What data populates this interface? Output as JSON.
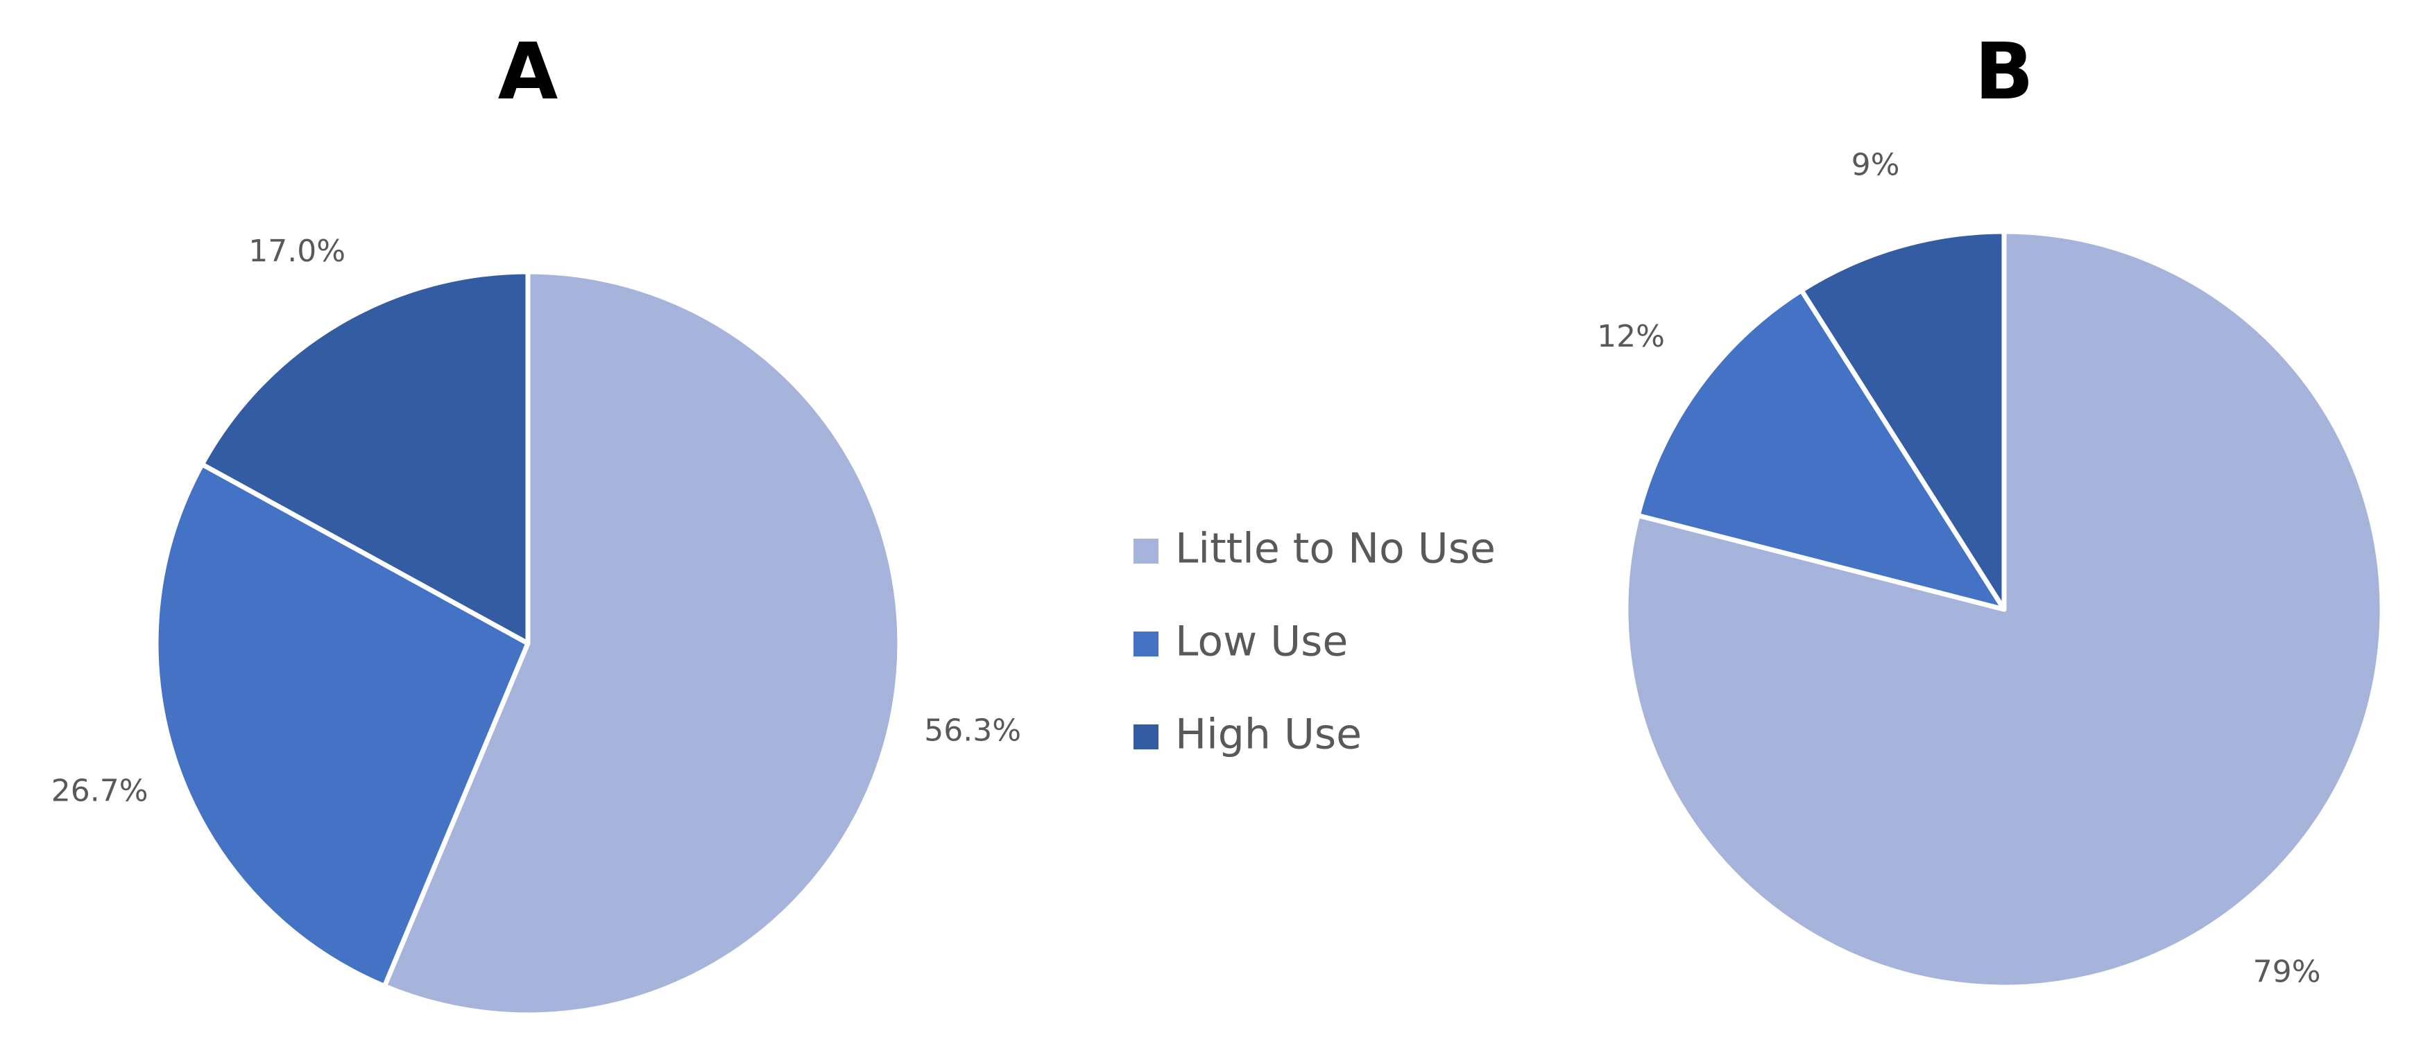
{
  "chart_data": [
    {
      "type": "pie",
      "title": "A",
      "categories": [
        "Little to No Use",
        "Low Use",
        "High Use"
      ],
      "values": [
        56.3,
        26.7,
        17.0
      ],
      "value_labels": [
        "56.3%",
        "26.7%",
        "17.0%"
      ],
      "colors": [
        "#a6b4db",
        "#4472c4",
        "#345ca3"
      ],
      "legend": "center"
    },
    {
      "type": "pie",
      "title": "B",
      "categories": [
        "Little to No Use",
        "Low Use",
        "High Use"
      ],
      "values": [
        79,
        12,
        9
      ],
      "value_labels": [
        "79%",
        "12%",
        "9%"
      ],
      "colors": [
        "#a6b4db",
        "#4472c4",
        "#345ca3"
      ]
    }
  ]
}
